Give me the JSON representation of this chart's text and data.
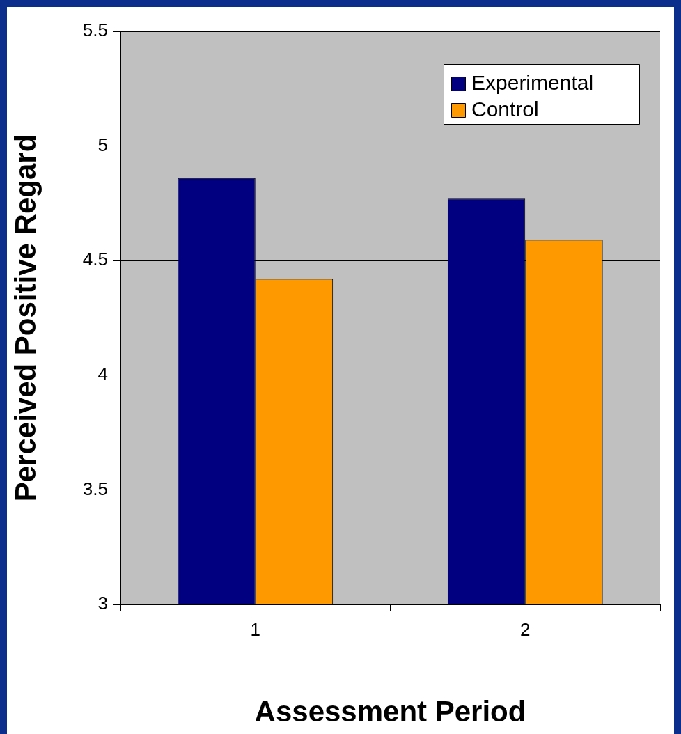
{
  "chart_data": {
    "type": "bar",
    "xlabel": "Assessment Period",
    "ylabel": "Perceived Positive Regard",
    "categories": [
      "1",
      "2"
    ],
    "series": [
      {
        "name": "Experimental",
        "color": "#000080",
        "values": [
          4.86,
          4.77
        ]
      },
      {
        "name": "Control",
        "color": "#ff9900",
        "values": [
          4.42,
          4.59
        ]
      }
    ],
    "ylim": [
      3,
      5.5
    ],
    "yticks": [
      3,
      3.5,
      4,
      4.5,
      5,
      5.5
    ],
    "grid": "y",
    "legend": "top right"
  }
}
